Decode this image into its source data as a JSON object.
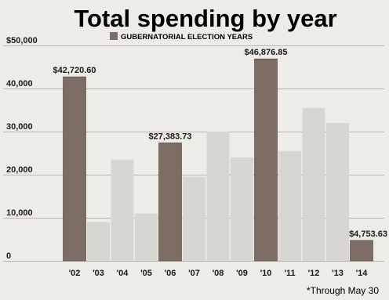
{
  "chart_data": {
    "type": "bar",
    "title": "Total spending by year",
    "legend": {
      "label": "GUBERNATORIAL ELECTION YEARS",
      "placement": "top-center"
    },
    "categories": [
      "'02",
      "'03",
      "'04",
      "'05",
      "'06",
      "'07",
      "'08",
      "'09",
      "'10",
      "'11",
      "'12",
      "'13",
      "'14"
    ],
    "values": [
      42720.6,
      9000,
      23500,
      11000,
      27383.73,
      19500,
      30000,
      24000,
      46876.85,
      25500,
      35500,
      32000,
      4753.63
    ],
    "gubernatorial": [
      true,
      false,
      false,
      false,
      true,
      false,
      false,
      false,
      true,
      false,
      false,
      false,
      true
    ],
    "data_labels": [
      "$42,720.60",
      "",
      "",
      "",
      "$27,383.73",
      "",
      "",
      "",
      "$46,876.85",
      "",
      "",
      "",
      "$4,753.63"
    ],
    "y_ticks": [
      {
        "value": 0,
        "label": "0"
      },
      {
        "value": 10000,
        "label": "10,000"
      },
      {
        "value": 20000,
        "label": "20,000"
      },
      {
        "value": 30000,
        "label": "30,000"
      },
      {
        "value": 40000,
        "label": "40,000"
      },
      {
        "value": 50000,
        "label": "$50,000"
      }
    ],
    "ylim": [
      0,
      50000
    ],
    "grid": true,
    "footnote": "*Through May 30",
    "colors": {
      "election_bar": "#7d6d65",
      "other_bar": "#d8d6d0",
      "grid": "#b9b6ae",
      "background": "#eeece6",
      "text": "#1a1a1a"
    }
  }
}
